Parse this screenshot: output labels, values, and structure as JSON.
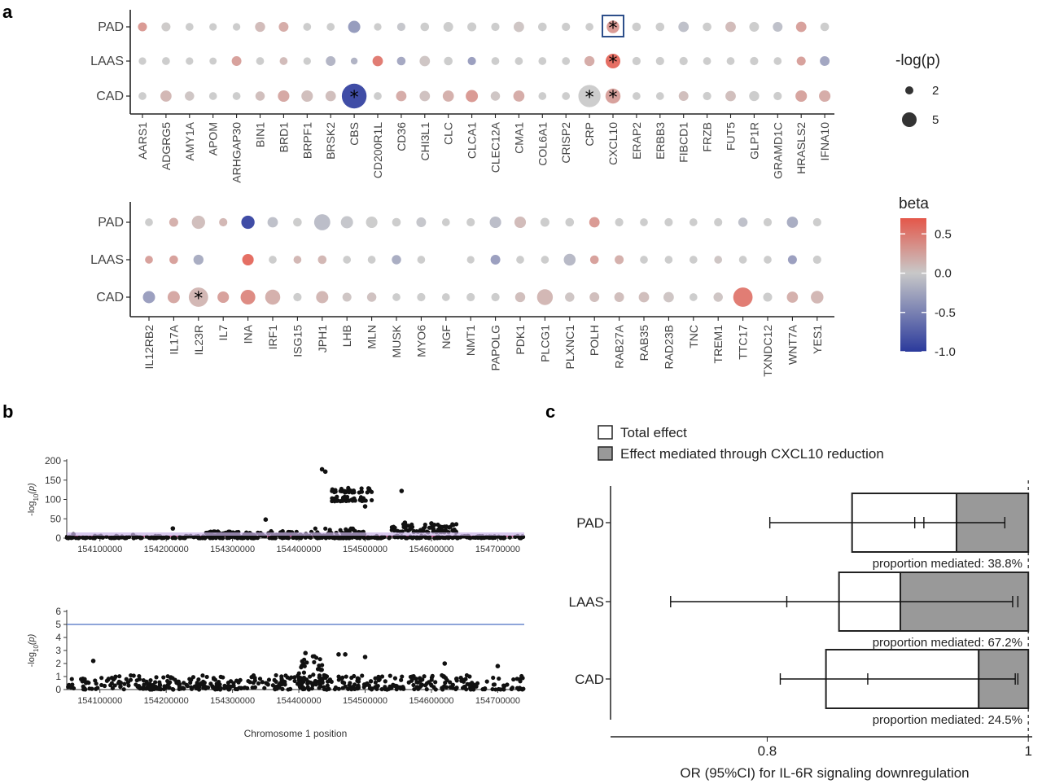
{
  "labels": {
    "panel_a": "a",
    "panel_b": "b",
    "panel_c": "c",
    "size_legend_title": "-log(p)",
    "color_legend_title": "beta"
  },
  "chart_data": [
    {
      "id": "a_top",
      "type": "scatter",
      "subtype": "dot-matrix",
      "genes": [
        "AARS1",
        "ADGRG5",
        "AMY1A",
        "APOM",
        "ARHGAP30",
        "BIN1",
        "BRD1",
        "BRPF1",
        "BRSK2",
        "CBS",
        "CD200R1L",
        "CD36",
        "CHI3L1",
        "CLC",
        "CLCA1",
        "CLEC12A",
        "CMA1",
        "COL6A1",
        "CRISP2",
        "CRP",
        "CXCL10",
        "ERAP2",
        "ERBB3",
        "FIBCD1",
        "FRZB",
        "FUT5",
        "GLP1R",
        "GRAMD1C",
        "HRASLS2",
        "IFNA10"
      ],
      "outcomes": [
        "PAD",
        "LAAS",
        "CAD"
      ],
      "beta": [
        [
          0.35,
          0.02,
          0.0,
          0.0,
          0.0,
          0.12,
          0.22,
          0.0,
          0.0,
          -0.38,
          0.0,
          -0.05,
          0.0,
          0.0,
          0.0,
          0.0,
          0.05,
          0.0,
          0.0,
          0.0,
          0.35,
          0.0,
          0.0,
          -0.1,
          0.0,
          0.12,
          0.0,
          -0.1,
          0.3,
          0.0
        ],
        [
          0.0,
          0.0,
          0.0,
          0.0,
          0.3,
          0.0,
          0.12,
          0.0,
          -0.18,
          -0.2,
          0.55,
          -0.28,
          0.05,
          0.0,
          -0.35,
          0.0,
          0.0,
          0.0,
          0.0,
          0.22,
          0.65,
          0.0,
          0.0,
          0.0,
          0.0,
          0.0,
          0.0,
          0.0,
          0.3,
          -0.3
        ],
        [
          0.0,
          0.15,
          0.05,
          0.0,
          0.0,
          0.1,
          0.25,
          0.1,
          0.1,
          -1.0,
          0.0,
          0.22,
          0.08,
          0.2,
          0.35,
          0.05,
          0.22,
          0.0,
          0.0,
          0.0,
          0.3,
          0.0,
          0.0,
          0.1,
          0.0,
          0.1,
          0.0,
          0.0,
          0.28,
          0.22
        ]
      ],
      "neglog_p": [
        [
          1.6,
          1.6,
          1.3,
          1.2,
          1.2,
          1.9,
          1.8,
          1.3,
          1.3,
          2.5,
          1.2,
          1.4,
          1.5,
          1.8,
          1.6,
          1.4,
          2.0,
          1.5,
          1.4,
          1.3,
          2.6,
          1.5,
          1.5,
          2.0,
          1.5,
          2.0,
          1.8,
          1.8,
          2.0,
          1.5
        ],
        [
          1.2,
          1.3,
          1.2,
          1.1,
          1.8,
          1.3,
          1.3,
          1.2,
          1.8,
          1.0,
          2.0,
          1.5,
          2.0,
          1.5,
          1.4,
          1.3,
          1.3,
          1.3,
          1.3,
          1.9,
          3.2,
          1.4,
          1.4,
          1.4,
          1.3,
          1.3,
          1.4,
          1.3,
          1.6,
          1.8
        ],
        [
          1.3,
          2.2,
          1.7,
          1.3,
          1.3,
          1.7,
          2.3,
          2.3,
          2.0,
          6.0,
          1.3,
          2.0,
          2.0,
          2.2,
          2.5,
          1.7,
          2.2,
          1.3,
          1.3,
          5.3,
          3.3,
          1.3,
          1.3,
          1.8,
          1.4,
          2.0,
          1.9,
          1.4,
          2.3,
          2.3
        ]
      ],
      "significant": [
        {
          "outcome": "PAD",
          "gene": "CXCL10"
        },
        {
          "outcome": "LAAS",
          "gene": "CXCL10"
        },
        {
          "outcome": "CAD",
          "gene": "CBS"
        },
        {
          "outcome": "CAD",
          "gene": "CRP"
        },
        {
          "outcome": "CAD",
          "gene": "CXCL10"
        }
      ],
      "highlight_box": {
        "outcome": "PAD",
        "gene": "CXCL10"
      }
    },
    {
      "id": "a_bottom",
      "type": "scatter",
      "subtype": "dot-matrix",
      "genes": [
        "IL12RB2",
        "IL17A",
        "IL23R",
        "IL7",
        "INA",
        "IRF1",
        "ISG15",
        "JPH1",
        "LHB",
        "MLN",
        "MUSK",
        "MYO6",
        "NGF",
        "NMT1",
        "PAPOLG",
        "PDK1",
        "PLCG1",
        "PLXNC1",
        "POLH",
        "RAB27A",
        "RAB35",
        "RAD23B",
        "TNC",
        "TREM1",
        "TTC17",
        "TXNDC12",
        "WNT7A",
        "YES1"
      ],
      "outcomes": [
        "PAD",
        "LAAS",
        "CAD"
      ],
      "beta": [
        [
          0.0,
          0.2,
          0.1,
          0.15,
          -1.0,
          -0.1,
          0.0,
          -0.12,
          -0.05,
          0.0,
          0.0,
          -0.05,
          0.0,
          0.0,
          -0.12,
          0.12,
          0.0,
          0.0,
          0.35,
          0.0,
          0.0,
          0.0,
          0.0,
          0.0,
          -0.1,
          0.0,
          -0.25,
          0.0
        ],
        [
          0.3,
          0.3,
          -0.25,
          null,
          0.65,
          0.0,
          0.15,
          0.15,
          0.0,
          0.0,
          -0.25,
          0.0,
          null,
          0.0,
          -0.35,
          0.0,
          0.0,
          -0.15,
          0.3,
          0.2,
          0.0,
          0.0,
          0.0,
          0.05,
          0.0,
          0.0,
          -0.35,
          0.0
        ],
        [
          -0.35,
          0.25,
          0.15,
          0.3,
          0.45,
          0.2,
          0.0,
          0.15,
          0.05,
          0.08,
          0.0,
          0.0,
          0.0,
          0.0,
          0.0,
          0.1,
          0.15,
          0.05,
          0.1,
          0.1,
          0.1,
          0.05,
          0.0,
          0.05,
          0.55,
          0.0,
          0.2,
          0.15
        ]
      ],
      "neglog_p": [
        [
          1.3,
          1.6,
          2.8,
          1.4,
          2.8,
          2.0,
          1.5,
          3.6,
          2.5,
          2.3,
          1.5,
          1.8,
          1.3,
          1.4,
          2.3,
          2.3,
          1.6,
          1.5,
          2.0,
          1.4,
          1.3,
          1.4,
          1.3,
          1.4,
          1.7,
          1.4,
          2.2,
          1.4
        ],
        [
          1.3,
          1.5,
          1.9,
          null,
          2.3,
          1.3,
          1.3,
          1.5,
          1.3,
          1.3,
          1.7,
          1.3,
          null,
          1.2,
          1.8,
          1.3,
          1.3,
          2.4,
          1.5,
          1.6,
          1.3,
          1.3,
          1.3,
          1.3,
          1.3,
          1.3,
          1.6,
          1.4
        ],
        [
          2.5,
          2.5,
          4.5,
          2.3,
          3.2,
          3.3,
          1.4,
          2.5,
          1.6,
          1.7,
          1.3,
          1.4,
          1.3,
          1.4,
          1.4,
          1.9,
          3.5,
          1.7,
          1.8,
          1.8,
          2.0,
          2.0,
          1.3,
          1.7,
          4.5,
          1.6,
          2.2,
          2.6
        ]
      ],
      "significant": [
        {
          "outcome": "CAD",
          "gene": "IL23R"
        }
      ]
    },
    {
      "id": "legend_a",
      "type": "legend",
      "size_legend": [
        {
          "label": "2",
          "value": 2
        },
        {
          "label": "5",
          "value": 5
        }
      ],
      "color_scale": {
        "ticks": [
          "0.5",
          "0.0",
          "-0.5",
          "-1.0"
        ],
        "tick_values": [
          0.5,
          0.0,
          -0.5,
          -1.0
        ],
        "min": -1.0,
        "max": 0.7,
        "low_color": "#2b3a9c",
        "mid_color": "#c8c8c8",
        "high_color": "#e4574a"
      }
    },
    {
      "id": "b_top",
      "type": "scatter",
      "subtype": "locuszoom",
      "ylabel": "-log10(p)",
      "xlim": [
        154050000,
        154740000
      ],
      "ylim": [
        0,
        200
      ],
      "yticks": [
        "0",
        "50",
        "100",
        "150",
        "200"
      ],
      "ytick_values": [
        0,
        50,
        100,
        150,
        200
      ],
      "xticks": [
        "154100000",
        "154200000",
        "154300000",
        "154400000",
        "154500000",
        "154600000",
        "154700000"
      ],
      "xtick_values": [
        154100000,
        154200000,
        154300000,
        154400000,
        154500000,
        154600000,
        154700000
      ],
      "clusters": [
        {
          "x_from": 154050000,
          "x_to": 154740000,
          "y_from": 0,
          "y_to": 6
        },
        {
          "x_from": 154260000,
          "x_to": 154420000,
          "y_from": 5,
          "y_to": 18
        },
        {
          "x_from": 154420000,
          "x_to": 154500000,
          "y_from": 5,
          "y_to": 25
        },
        {
          "x_from": 154450000,
          "x_to": 154510000,
          "y_from": 118,
          "y_to": 130
        },
        {
          "x_from": 154450000,
          "x_to": 154510000,
          "y_from": 95,
          "y_to": 108
        },
        {
          "x_from": 154540000,
          "x_to": 154640000,
          "y_from": 15,
          "y_to": 36
        }
      ],
      "points": [
        {
          "x": 154435000,
          "y": 178
        },
        {
          "x": 154440000,
          "y": 172
        },
        {
          "x": 154555000,
          "y": 122
        },
        {
          "x": 154500000,
          "y": 82
        },
        {
          "x": 154210000,
          "y": 25
        },
        {
          "x": 154350000,
          "y": 48
        },
        {
          "x": 154600000,
          "y": 38
        },
        {
          "x": 154560000,
          "y": 40
        },
        {
          "x": 154150000,
          "y": 8
        },
        {
          "x": 154060000,
          "y": 10
        }
      ],
      "threshold": 5
    },
    {
      "id": "b_bottom",
      "type": "scatter",
      "subtype": "manhattan-region",
      "ylabel": "-log10(p)",
      "xlabel": "Chromosome 1 position",
      "xlim": [
        154050000,
        154740000
      ],
      "ylim": [
        0,
        6
      ],
      "yticks": [
        "0",
        "1",
        "2",
        "3",
        "4",
        "5",
        "6"
      ],
      "ytick_values": [
        0,
        1,
        2,
        3,
        4,
        5,
        6
      ],
      "xticks": [
        "154100000",
        "154200000",
        "154300000",
        "154400000",
        "154500000",
        "154600000",
        "154700000"
      ],
      "xtick_values": [
        154100000,
        154200000,
        154300000,
        154400000,
        154500000,
        154600000,
        154700000
      ],
      "clusters": [
        {
          "x_from": 154050000,
          "x_to": 154740000,
          "y_from": 0,
          "y_to": 1.1
        },
        {
          "x_from": 154400000,
          "x_to": 154440000,
          "y_from": 0.5,
          "y_to": 2.6
        }
      ],
      "points": [
        {
          "x": 154410000,
          "y": 2.8
        },
        {
          "x": 154460000,
          "y": 2.7
        },
        {
          "x": 154470000,
          "y": 2.7
        },
        {
          "x": 154500000,
          "y": 2.5
        },
        {
          "x": 154090000,
          "y": 2.2
        },
        {
          "x": 154620000,
          "y": 2.0
        },
        {
          "x": 154700000,
          "y": 1.8
        }
      ],
      "threshold": 5
    },
    {
      "id": "c",
      "type": "bar",
      "subtype": "stacked-horizontal-bar-with-ci",
      "xlabel": "OR (95%CI) for IL-6R signaling downregulation",
      "xticks": [
        "0.8",
        "1"
      ],
      "xtick_values": [
        0.8,
        1.0
      ],
      "xlim": [
        0.68,
        1.003
      ],
      "legend": [
        {
          "name": "Total effect",
          "color": "#ffffff"
        },
        {
          "name": "Effect mediated through CXCL10 reduction",
          "color": "#999999"
        }
      ],
      "categories": [
        "PAD",
        "LAAS",
        "CAD"
      ],
      "total_effect": [
        0.865,
        0.855,
        0.845
      ],
      "total_ci": [
        [
          0.802,
          0.92
        ],
        [
          0.726,
          0.992
        ],
        [
          0.81,
          0.992
        ]
      ],
      "mediated_start": [
        0.945,
        0.902,
        0.962
      ],
      "mediated_ci": [
        [
          0.913,
          0.982
        ],
        [
          0.815,
          0.988
        ],
        [
          0.877,
          0.99
        ]
      ],
      "proportion_text": [
        "proportion mediated: 38.8%",
        "proportion mediated: 67.2%",
        "proportion mediated: 24.5%"
      ]
    }
  ]
}
